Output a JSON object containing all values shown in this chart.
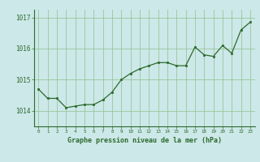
{
  "x": [
    0,
    1,
    2,
    3,
    4,
    5,
    6,
    7,
    8,
    9,
    10,
    11,
    12,
    13,
    14,
    15,
    16,
    17,
    18,
    19,
    20,
    21,
    22,
    23
  ],
  "y": [
    1014.7,
    1014.4,
    1014.4,
    1014.1,
    1014.15,
    1014.2,
    1014.2,
    1014.35,
    1014.6,
    1015.0,
    1015.2,
    1015.35,
    1015.45,
    1015.55,
    1015.55,
    1015.45,
    1015.45,
    1016.05,
    1015.8,
    1015.75,
    1016.1,
    1015.85,
    1016.6,
    1016.85
  ],
  "line_color": "#2d6a2d",
  "marker_color": "#2d6a2d",
  "bg_color": "#cce8e8",
  "grid_color": "#90c090",
  "axis_color": "#2d6a2d",
  "tick_label_color": "#2d6a2d",
  "xlabel": "Graphe pression niveau de la mer (hPa)",
  "xlabel_color": "#2d6a2d",
  "ylim": [
    1013.5,
    1017.25
  ],
  "yticks": [
    1014,
    1015,
    1016,
    1017
  ],
  "xlim": [
    -0.5,
    23.5
  ]
}
